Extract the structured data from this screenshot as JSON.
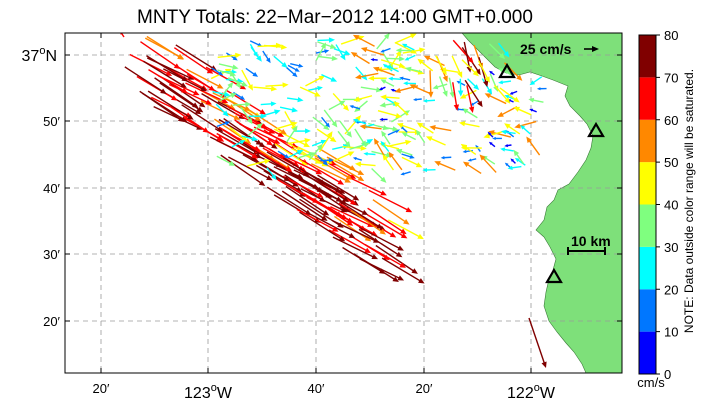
{
  "title": "MNTY Totals: 22−Mar−2012 14:00 GMT+0.000",
  "map": {
    "land_color": "#7ee07a",
    "lat_labels": [
      {
        "deg": "37",
        "sup": "o",
        "hemi": "N",
        "lat": 37.0,
        "big": true
      },
      {
        "text": "50′",
        "lat": 36.8333
      },
      {
        "text": "40′",
        "lat": 36.6667
      },
      {
        "text": "30′",
        "lat": 36.5
      },
      {
        "text": "20′",
        "lat": 36.3333
      }
    ],
    "lon_labels": [
      {
        "text": "20′",
        "lon": -123.3333
      },
      {
        "deg": "123",
        "sup": "o",
        "hemi": "W",
        "lon": -123.0,
        "big": true
      },
      {
        "text": "40′",
        "lon": -122.6667
      },
      {
        "text": "20′",
        "lon": -122.3333
      },
      {
        "deg": "122",
        "sup": "o",
        "hemi": "W",
        "lon": -122.0,
        "big": true
      }
    ],
    "scale_vector_label": "25 cm/s",
    "scale_bar_label": "10 km",
    "sites": [
      "site-1",
      "site-2",
      "site-3"
    ]
  },
  "colorbar": {
    "ticks": [
      "80",
      "70",
      "60",
      "50",
      "40",
      "30",
      "20",
      "10",
      "0"
    ],
    "units": "cm/s",
    "note": "NOTE: Data outside color range will be saturated.",
    "colors": [
      "#0000ff",
      "#0077ff",
      "#00ffff",
      "#7fff7f",
      "#ffff00",
      "#ff8800",
      "#ff0000",
      "#800000"
    ]
  }
}
